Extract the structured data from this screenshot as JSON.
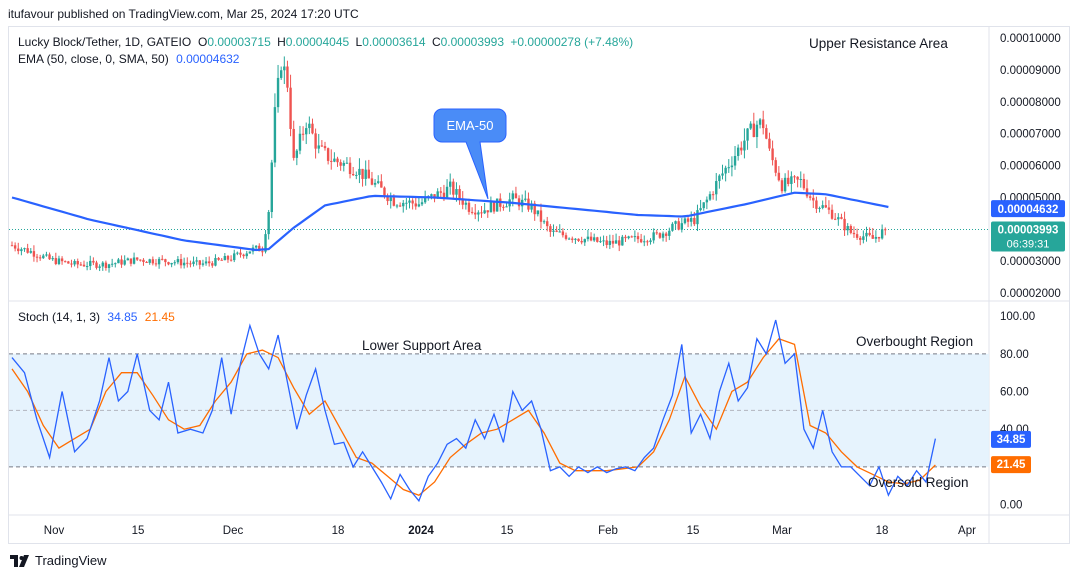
{
  "header": {
    "published": "itufavour published on TradingView.com, Mar 25, 2024 17:20 UTC"
  },
  "legend": {
    "symbol": "Lucky Block/Tether, 1D, GATEIO",
    "o_label": "O",
    "o": "0.00003715",
    "h_label": "H",
    "h": "0.00004045",
    "l_label": "L",
    "l": "0.00003614",
    "c_label": "C",
    "c": "0.00003993",
    "change": "+0.00000278 (+7.48%)",
    "ema_label": "EMA (50, close, 0, SMA, 50)",
    "ema_value": "0.00004632",
    "stoch_label": "Stoch (14, 1, 3)",
    "stoch_k": "34.85",
    "stoch_d": "21.45"
  },
  "annotations": {
    "upper_resistance": "Upper Resistance Area",
    "lower_support": "Lower Support Area",
    "overbought": "Overbought Region",
    "oversold": "Oversold Region",
    "ema_callout": "EMA-50"
  },
  "price_badges": {
    "ema": "0.00004632",
    "last": "0.00003993",
    "countdown": "06:39:31"
  },
  "stoch_badges": {
    "k": "34.85",
    "d": "21.45"
  },
  "footer": {
    "brand": "TradingView"
  },
  "colors": {
    "up": "#26a69a",
    "down": "#ef5350",
    "ema": "#2962ff",
    "stoch_k": "#2962ff",
    "stoch_d": "#ff6d00",
    "band": "#e3f2fd"
  },
  "chart_data": [
    {
      "type": "candlestick",
      "title": "Lucky Block/Tether, 1D, GATEIO",
      "x_ticks": [
        "Nov",
        "15",
        "Dec",
        "18",
        "2024",
        "15",
        "Feb",
        "15",
        "Mar",
        "18",
        "Apr"
      ],
      "y_ticks": [
        "0.00002000",
        "0.00003000",
        "0.00004000",
        "0.00005000",
        "0.00006000",
        "0.00007000",
        "0.00008000",
        "0.00009000",
        "0.00010000"
      ],
      "ylim": [
        1.75e-05,
        0.0001035
      ],
      "series": [
        {
          "name": "EMA (50, close, 0, SMA, 50)",
          "points": [
            [
              0,
              5e-05
            ],
            [
              25,
              4.3e-05
            ],
            [
              55,
              3.65e-05
            ],
            [
              78,
              3.35e-05
            ],
            [
              82,
              3.38e-05
            ],
            [
              90,
              4.05e-05
            ],
            [
              100,
              4.75e-05
            ],
            [
              115,
              5.05e-05
            ],
            [
              135,
              5e-05
            ],
            [
              160,
              4.83e-05
            ],
            [
              200,
              4.45e-05
            ],
            [
              215,
              4.4e-05
            ],
            [
              235,
              4.8e-05
            ],
            [
              250,
              5.15e-05
            ],
            [
              260,
              5.1e-05
            ],
            [
              280,
              4.7e-05
            ]
          ]
        }
      ],
      "candle_anchors": [
        [
          0,
          3.5
        ],
        [
          6,
          3.3
        ],
        [
          12,
          3.05
        ],
        [
          20,
          2.9
        ],
        [
          30,
          2.9
        ],
        [
          40,
          3.05
        ],
        [
          50,
          3.0
        ],
        [
          60,
          2.9
        ],
        [
          66,
          3.0
        ],
        [
          70,
          3.1
        ],
        [
          76,
          3.35
        ],
        [
          80,
          3.4
        ],
        [
          82,
          4.6
        ],
        [
          84,
          7.6
        ],
        [
          86,
          9.3
        ],
        [
          88,
          8.6
        ],
        [
          90,
          6.1
        ],
        [
          94,
          7.4
        ],
        [
          98,
          6.5
        ],
        [
          102,
          6.2
        ],
        [
          110,
          5.9
        ],
        [
          116,
          5.4
        ],
        [
          122,
          4.9
        ],
        [
          130,
          4.8
        ],
        [
          140,
          5.3
        ],
        [
          146,
          4.7
        ],
        [
          150,
          4.6
        ],
        [
          160,
          4.95
        ],
        [
          166,
          4.7
        ],
        [
          172,
          3.9
        ],
        [
          180,
          3.75
        ],
        [
          190,
          3.55
        ],
        [
          200,
          3.7
        ],
        [
          206,
          3.8
        ],
        [
          212,
          4.1
        ],
        [
          218,
          4.3
        ],
        [
          222,
          4.9
        ],
        [
          226,
          5.6
        ],
        [
          230,
          6.2
        ],
        [
          234,
          6.8
        ],
        [
          238,
          7.3
        ],
        [
          240,
          7.3
        ],
        [
          242,
          6.4
        ],
        [
          246,
          5.4
        ],
        [
          252,
          5.5
        ],
        [
          256,
          4.9
        ],
        [
          262,
          4.5
        ],
        [
          268,
          3.9
        ],
        [
          275,
          3.7
        ],
        [
          279,
          3.99
        ]
      ],
      "last_close": 3.993e-05,
      "ema_last": 4.632e-05
    },
    {
      "type": "line",
      "title": "Stoch (14, 1, 3)",
      "y_ticks": [
        "0.00",
        "20.00",
        "40.00",
        "60.00",
        "80.00",
        "100.00"
      ],
      "ylim": [
        -5,
        107
      ],
      "bands": [
        20,
        50,
        80
      ],
      "series": [
        {
          "name": "K",
          "points": [
            [
              0,
              78
            ],
            [
              4,
              70
            ],
            [
              8,
              45
            ],
            [
              12,
              25
            ],
            [
              16,
              60
            ],
            [
              20,
              28
            ],
            [
              24,
              35
            ],
            [
              28,
              55
            ],
            [
              31,
              78
            ],
            [
              34,
              55
            ],
            [
              37,
              60
            ],
            [
              40,
              80
            ],
            [
              44,
              50
            ],
            [
              47,
              45
            ],
            [
              50,
              65
            ],
            [
              53,
              38
            ],
            [
              57,
              40
            ],
            [
              61,
              38
            ],
            [
              64,
              50
            ],
            [
              67,
              78
            ],
            [
              70,
              48
            ],
            [
              73,
              75
            ],
            [
              76,
              95
            ],
            [
              79,
              80
            ],
            [
              82,
              72
            ],
            [
              85,
              90
            ],
            [
              88,
              65
            ],
            [
              91,
              40
            ],
            [
              94,
              58
            ],
            [
              97,
              72
            ],
            [
              100,
              50
            ],
            [
              103,
              32
            ],
            [
              106,
              33
            ],
            [
              109,
              20
            ],
            [
              112,
              28
            ],
            [
              115,
              20
            ],
            [
              118,
              12
            ],
            [
              121,
              3
            ],
            [
              124,
              16
            ],
            [
              127,
              8
            ],
            [
              130,
              2
            ],
            [
              133,
              15
            ],
            [
              136,
              22
            ],
            [
              139,
              32
            ],
            [
              142,
              35
            ],
            [
              145,
              30
            ],
            [
              148,
              45
            ],
            [
              151,
              35
            ],
            [
              154,
              48
            ],
            [
              157,
              33
            ],
            [
              160,
              60
            ],
            [
              163,
              50
            ],
            [
              166,
              55
            ],
            [
              169,
              40
            ],
            [
              172,
              18
            ],
            [
              175,
              20
            ],
            [
              178,
              15
            ],
            [
              181,
              20
            ],
            [
              184,
              17
            ],
            [
              187,
              20
            ],
            [
              190,
              17
            ],
            [
              193,
              19
            ],
            [
              196,
              20
            ],
            [
              199,
              18
            ],
            [
              202,
              25
            ],
            [
              205,
              30
            ],
            [
              208,
              45
            ],
            [
              211,
              58
            ],
            [
              214,
              85
            ],
            [
              217,
              38
            ],
            [
              220,
              48
            ],
            [
              223,
              35
            ],
            [
              226,
              60
            ],
            [
              229,
              75
            ],
            [
              232,
              55
            ],
            [
              235,
              62
            ],
            [
              238,
              88
            ],
            [
              241,
              80
            ],
            [
              244,
              98
            ],
            [
              247,
              75
            ],
            [
              250,
              80
            ],
            [
              253,
              40
            ],
            [
              256,
              30
            ],
            [
              259,
              50
            ],
            [
              262,
              28
            ],
            [
              265,
              20
            ],
            [
              268,
              20
            ],
            [
              271,
              15
            ],
            [
              274,
              10
            ],
            [
              277,
              20
            ],
            [
              280,
              5
            ],
            [
              283,
              15
            ],
            [
              286,
              10
            ],
            [
              289,
              18
            ],
            [
              292,
              12
            ],
            [
              295,
              35
            ]
          ]
        },
        {
          "name": "D",
          "points": [
            [
              0,
              72
            ],
            [
              5,
              60
            ],
            [
              10,
              42
            ],
            [
              15,
              30
            ],
            [
              20,
              35
            ],
            [
              25,
              40
            ],
            [
              30,
              60
            ],
            [
              35,
              70
            ],
            [
              40,
              70
            ],
            [
              45,
              58
            ],
            [
              50,
              45
            ],
            [
              55,
              40
            ],
            [
              60,
              42
            ],
            [
              65,
              55
            ],
            [
              70,
              65
            ],
            [
              75,
              80
            ],
            [
              80,
              82
            ],
            [
              85,
              78
            ],
            [
              90,
              62
            ],
            [
              95,
              48
            ],
            [
              100,
              55
            ],
            [
              105,
              40
            ],
            [
              110,
              25
            ],
            [
              115,
              22
            ],
            [
              120,
              15
            ],
            [
              125,
              8
            ],
            [
              130,
              5
            ],
            [
              135,
              12
            ],
            [
              140,
              25
            ],
            [
              145,
              32
            ],
            [
              150,
              38
            ],
            [
              155,
              40
            ],
            [
              160,
              45
            ],
            [
              165,
              50
            ],
            [
              170,
              38
            ],
            [
              175,
              22
            ],
            [
              180,
              18
            ],
            [
              185,
              18
            ],
            [
              190,
              18
            ],
            [
              195,
              19
            ],
            [
              200,
              20
            ],
            [
              205,
              28
            ],
            [
              210,
              45
            ],
            [
              215,
              68
            ],
            [
              220,
              52
            ],
            [
              225,
              40
            ],
            [
              230,
              60
            ],
            [
              235,
              65
            ],
            [
              240,
              78
            ],
            [
              245,
              88
            ],
            [
              250,
              85
            ],
            [
              255,
              42
            ],
            [
              260,
              38
            ],
            [
              265,
              28
            ],
            [
              270,
              20
            ],
            [
              275,
              16
            ],
            [
              280,
              12
            ],
            [
              285,
              11
            ],
            [
              290,
              13
            ],
            [
              295,
              21
            ]
          ]
        }
      ],
      "last_k": 34.85,
      "last_d": 21.45
    }
  ]
}
